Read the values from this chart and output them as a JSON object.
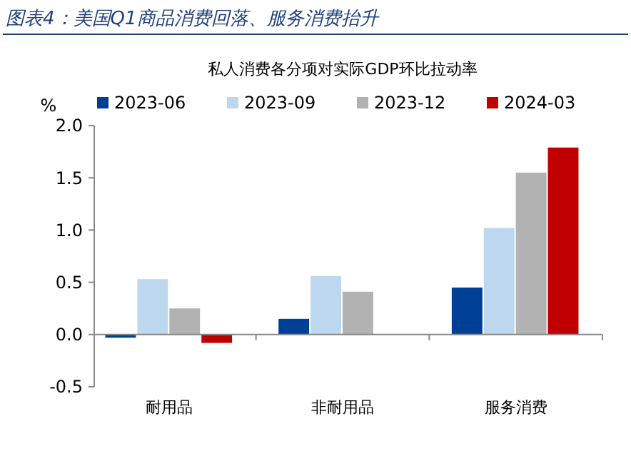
{
  "chart_data": {
    "type": "bar",
    "title": "图表4：美国Q1商品消费回落、服务消费抬升",
    "subtitle": "私人消费各分项对实际GDP环比拉动率",
    "ylabel": "%",
    "categories": [
      "耐用品",
      "非耐用品",
      "服务消费"
    ],
    "series": [
      {
        "name": "2023-06",
        "color": "#003f96",
        "values": [
          -0.03,
          0.15,
          0.45
        ]
      },
      {
        "name": "2023-09",
        "color": "#bdd7ee",
        "values": [
          0.53,
          0.56,
          1.02
        ]
      },
      {
        "name": "2023-12",
        "color": "#b2b2b2",
        "values": [
          0.25,
          0.41,
          1.55
        ]
      },
      {
        "name": "2024-03",
        "color": "#c00000",
        "values": [
          -0.08,
          null,
          1.79
        ]
      }
    ],
    "ylim": [
      -0.5,
      2.0
    ],
    "yticks": [
      {
        "value": -0.5,
        "label": "-0.5"
      },
      {
        "value": 0,
        "label": "0.0"
      },
      {
        "value": 0.5,
        "label": "0.5"
      },
      {
        "value": 1,
        "label": "1.0"
      },
      {
        "value": 1.5,
        "label": "1.5"
      },
      {
        "value": 2,
        "label": "2.0"
      }
    ],
    "legend": "top"
  }
}
